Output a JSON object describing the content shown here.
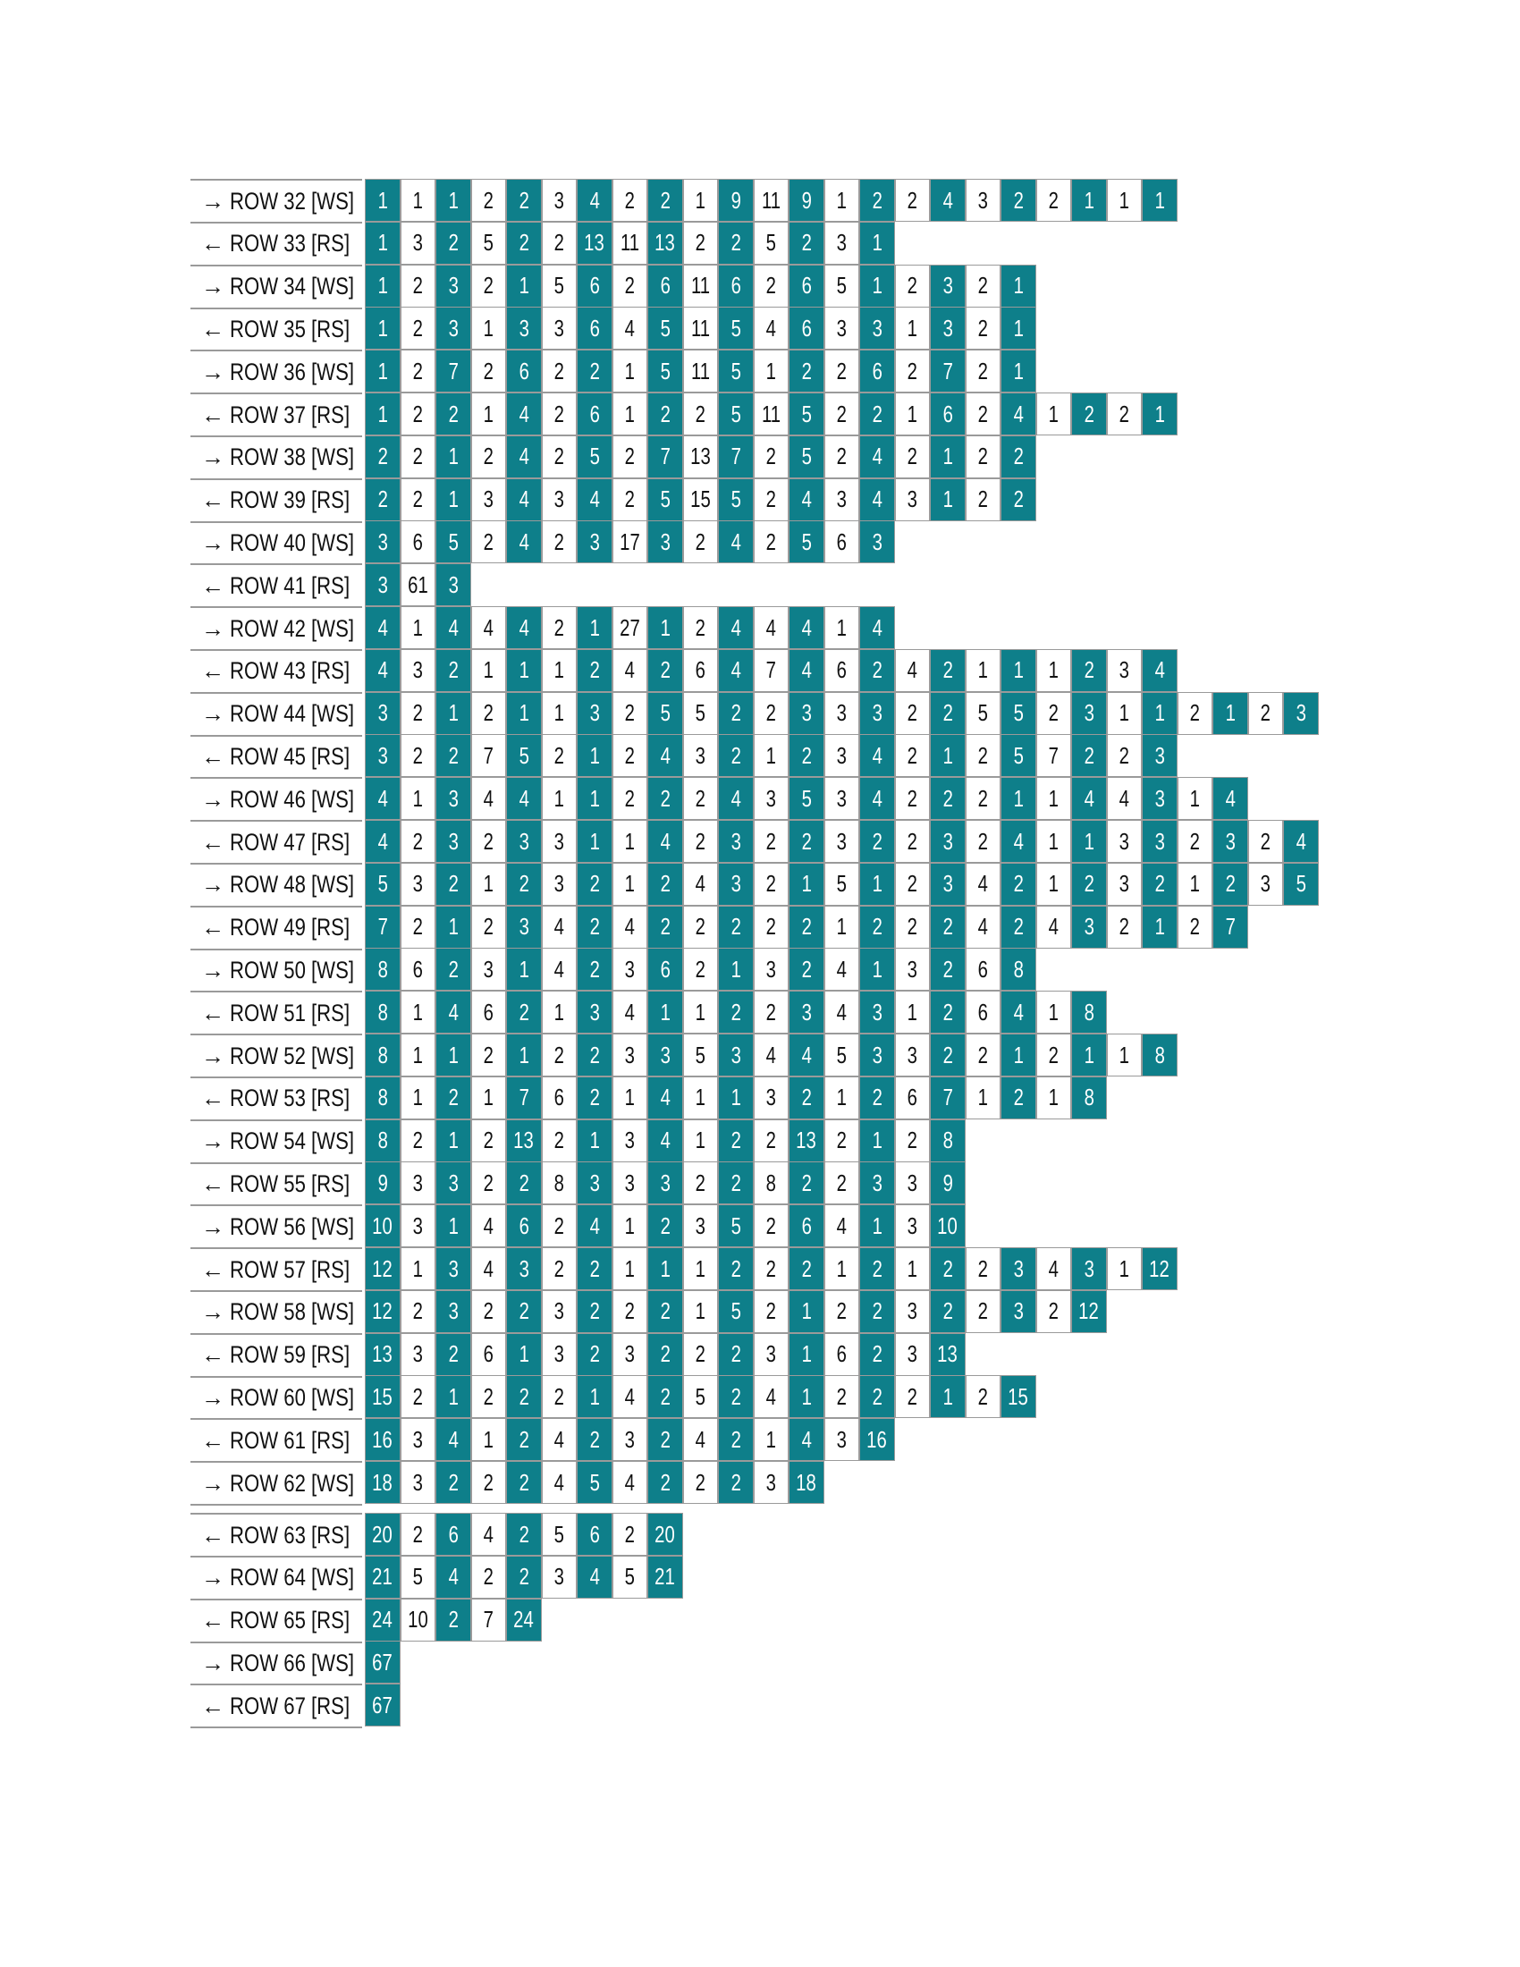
{
  "colors": {
    "dark_cell": "#0e7f8a",
    "light_cell": "#ffffff",
    "grid": "#9a9a9a"
  },
  "rows": [
    {
      "icon": "arrow-right",
      "label": "ROW 32 [WS]",
      "cells": [
        1,
        1,
        1,
        2,
        2,
        3,
        4,
        2,
        2,
        1,
        9,
        11,
        9,
        1,
        2,
        2,
        4,
        3,
        2,
        2,
        1,
        1,
        1
      ]
    },
    {
      "icon": "arrow-left",
      "label": "ROW 33 [RS]",
      "cells": [
        1,
        3,
        2,
        5,
        2,
        2,
        13,
        11,
        13,
        2,
        2,
        5,
        2,
        3,
        1
      ]
    },
    {
      "icon": "arrow-right",
      "label": "ROW 34 [WS]",
      "cells": [
        1,
        2,
        3,
        2,
        1,
        5,
        6,
        2,
        6,
        11,
        6,
        2,
        6,
        5,
        1,
        2,
        3,
        2,
        1
      ]
    },
    {
      "icon": "arrow-left",
      "label": "ROW 35 [RS]",
      "cells": [
        1,
        2,
        3,
        1,
        3,
        3,
        6,
        4,
        5,
        11,
        5,
        4,
        6,
        3,
        3,
        1,
        3,
        2,
        1
      ]
    },
    {
      "icon": "arrow-right",
      "label": "ROW 36 [WS]",
      "cells": [
        1,
        2,
        7,
        2,
        6,
        2,
        2,
        1,
        5,
        11,
        5,
        1,
        2,
        2,
        6,
        2,
        7,
        2,
        1
      ]
    },
    {
      "icon": "arrow-left",
      "label": "ROW 37 [RS]",
      "cells": [
        1,
        2,
        2,
        1,
        4,
        2,
        6,
        1,
        2,
        2,
        5,
        11,
        5,
        2,
        2,
        1,
        6,
        2,
        4,
        1,
        2,
        2,
        1
      ]
    },
    {
      "icon": "arrow-right",
      "label": "ROW 38 [WS]",
      "cells": [
        2,
        2,
        1,
        2,
        4,
        2,
        5,
        2,
        7,
        13,
        7,
        2,
        5,
        2,
        4,
        2,
        1,
        2,
        2
      ]
    },
    {
      "icon": "arrow-left",
      "label": "ROW 39 [RS]",
      "cells": [
        2,
        2,
        1,
        3,
        4,
        3,
        4,
        2,
        5,
        15,
        5,
        2,
        4,
        3,
        4,
        3,
        1,
        2,
        2
      ]
    },
    {
      "icon": "arrow-right",
      "label": "ROW 40 [WS]",
      "cells": [
        3,
        6,
        5,
        2,
        4,
        2,
        3,
        17,
        3,
        2,
        4,
        2,
        5,
        6,
        3
      ]
    },
    {
      "icon": "arrow-left",
      "label": "ROW 41 [RS]",
      "cells": [
        3,
        61,
        3
      ]
    },
    {
      "icon": "arrow-right",
      "label": "ROW 42 [WS]",
      "cells": [
        4,
        1,
        4,
        4,
        4,
        2,
        1,
        27,
        1,
        2,
        4,
        4,
        4,
        1,
        4
      ]
    },
    {
      "icon": "arrow-left",
      "label": "ROW 43 [RS]",
      "cells": [
        4,
        3,
        2,
        1,
        1,
        1,
        2,
        4,
        2,
        6,
        4,
        7,
        4,
        6,
        2,
        4,
        2,
        1,
        1,
        1,
        2,
        3,
        4
      ]
    },
    {
      "icon": "arrow-right",
      "label": "ROW 44 [WS]",
      "cells": [
        3,
        2,
        1,
        2,
        1,
        1,
        3,
        2,
        5,
        5,
        2,
        2,
        3,
        3,
        3,
        2,
        2,
        5,
        5,
        2,
        3,
        1,
        1,
        2,
        1,
        2,
        3
      ]
    },
    {
      "icon": "arrow-left",
      "label": "ROW 45 [RS]",
      "cells": [
        3,
        2,
        2,
        7,
        5,
        2,
        1,
        2,
        4,
        3,
        2,
        1,
        2,
        3,
        4,
        2,
        1,
        2,
        5,
        7,
        2,
        2,
        3
      ]
    },
    {
      "icon": "arrow-right",
      "label": "ROW 46 [WS]",
      "cells": [
        4,
        1,
        3,
        4,
        4,
        1,
        1,
        2,
        2,
        2,
        4,
        3,
        5,
        3,
        4,
        2,
        2,
        2,
        1,
        1,
        4,
        4,
        3,
        1,
        4
      ]
    },
    {
      "icon": "arrow-left",
      "label": "ROW 47 [RS]",
      "cells": [
        4,
        2,
        3,
        2,
        3,
        3,
        1,
        1,
        4,
        2,
        3,
        2,
        2,
        3,
        2,
        2,
        3,
        2,
        4,
        1,
        1,
        3,
        3,
        2,
        3,
        2,
        4
      ]
    },
    {
      "icon": "arrow-right",
      "label": "ROW 48 [WS]",
      "cells": [
        5,
        3,
        2,
        1,
        2,
        3,
        2,
        1,
        2,
        4,
        3,
        2,
        1,
        5,
        1,
        2,
        3,
        4,
        2,
        1,
        2,
        3,
        2,
        1,
        2,
        3,
        5
      ]
    },
    {
      "icon": "arrow-left",
      "label": "ROW 49 [RS]",
      "cells": [
        7,
        2,
        1,
        2,
        3,
        4,
        2,
        4,
        2,
        2,
        2,
        2,
        2,
        1,
        2,
        2,
        2,
        4,
        2,
        4,
        3,
        2,
        1,
        2,
        7
      ]
    },
    {
      "icon": "arrow-right",
      "label": "ROW 50 [WS]",
      "cells": [
        8,
        6,
        2,
        3,
        1,
        4,
        2,
        3,
        6,
        2,
        1,
        3,
        2,
        4,
        1,
        3,
        2,
        6,
        8
      ]
    },
    {
      "icon": "arrow-left",
      "label": "ROW 51 [RS]",
      "cells": [
        8,
        1,
        4,
        6,
        2,
        1,
        3,
        4,
        1,
        1,
        2,
        2,
        3,
        4,
        3,
        1,
        2,
        6,
        4,
        1,
        8
      ]
    },
    {
      "icon": "arrow-right",
      "label": "ROW 52 [WS]",
      "cells": [
        8,
        1,
        1,
        2,
        1,
        2,
        2,
        3,
        3,
        5,
        3,
        4,
        4,
        5,
        3,
        3,
        2,
        2,
        1,
        2,
        1,
        1,
        8
      ]
    },
    {
      "icon": "arrow-left",
      "label": "ROW 53 [RS]",
      "cells": [
        8,
        1,
        2,
        1,
        7,
        6,
        2,
        1,
        4,
        1,
        1,
        3,
        2,
        1,
        2,
        6,
        7,
        1,
        2,
        1,
        8
      ]
    },
    {
      "icon": "arrow-right",
      "label": "ROW 54 [WS]",
      "cells": [
        8,
        2,
        1,
        2,
        13,
        2,
        1,
        3,
        4,
        1,
        2,
        2,
        13,
        2,
        1,
        2,
        8
      ]
    },
    {
      "icon": "arrow-left",
      "label": "ROW 55 [RS]",
      "cells": [
        9,
        3,
        3,
        2,
        2,
        8,
        3,
        3,
        3,
        2,
        2,
        8,
        2,
        2,
        3,
        3,
        9
      ]
    },
    {
      "icon": "arrow-right",
      "label": "ROW 56 [WS]",
      "cells": [
        10,
        3,
        1,
        4,
        6,
        2,
        4,
        1,
        2,
        3,
        5,
        2,
        6,
        4,
        1,
        3,
        10
      ]
    },
    {
      "icon": "arrow-left",
      "label": "ROW 57 [RS]",
      "cells": [
        12,
        1,
        3,
        4,
        3,
        2,
        2,
        1,
        1,
        1,
        2,
        2,
        2,
        1,
        2,
        1,
        2,
        2,
        3,
        4,
        3,
        1,
        12
      ]
    },
    {
      "icon": "arrow-right",
      "label": "ROW 58 [WS]",
      "cells": [
        12,
        2,
        3,
        2,
        2,
        3,
        2,
        2,
        2,
        1,
        5,
        2,
        1,
        2,
        2,
        3,
        2,
        2,
        3,
        2,
        12
      ]
    },
    {
      "icon": "arrow-left",
      "label": "ROW 59 [RS]",
      "cells": [
        13,
        3,
        2,
        6,
        1,
        3,
        2,
        3,
        2,
        2,
        2,
        3,
        1,
        6,
        2,
        3,
        13
      ]
    },
    {
      "icon": "arrow-right",
      "label": "ROW 60 [WS]",
      "cells": [
        15,
        2,
        1,
        2,
        2,
        2,
        1,
        4,
        2,
        5,
        2,
        4,
        1,
        2,
        2,
        2,
        1,
        2,
        15
      ]
    },
    {
      "icon": "arrow-left",
      "label": "ROW 61 [RS]",
      "cells": [
        16,
        3,
        4,
        1,
        2,
        4,
        2,
        3,
        2,
        4,
        2,
        1,
        4,
        3,
        16
      ]
    },
    {
      "icon": "arrow-right",
      "label": "ROW 62 [WS]",
      "cells": [
        18,
        3,
        2,
        2,
        2,
        4,
        5,
        4,
        2,
        2,
        2,
        3,
        18
      ]
    },
    {
      "icon": "arrow-left",
      "label": "ROW 63 [RS]",
      "cells": [
        20,
        2,
        6,
        4,
        2,
        5,
        6,
        2,
        20
      ]
    },
    {
      "icon": "arrow-right",
      "label": "ROW 64 [WS]",
      "cells": [
        21,
        5,
        4,
        2,
        2,
        3,
        4,
        5,
        21
      ]
    },
    {
      "icon": "arrow-left",
      "label": "ROW 65 [RS]",
      "cells": [
        24,
        10,
        2,
        7,
        24
      ]
    },
    {
      "icon": "arrow-right",
      "label": "ROW 66 [WS]",
      "cells": [
        67
      ]
    },
    {
      "icon": "arrow-left",
      "label": "ROW 67 [RS]",
      "cells": [
        67
      ]
    }
  ]
}
